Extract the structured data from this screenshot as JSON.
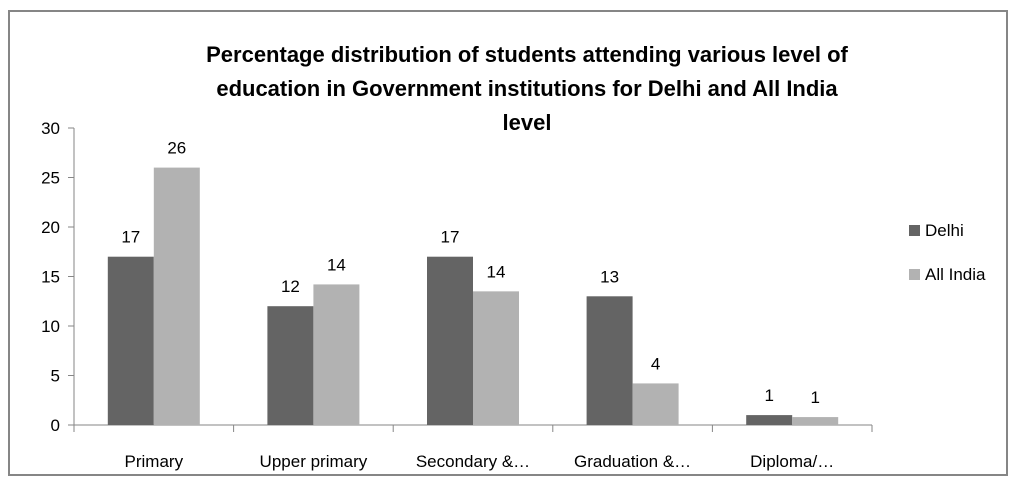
{
  "chart_data": {
    "type": "bar",
    "title_lines": [
      "Percentage distribution of students attending various level of",
      "education in Government institutions for Delhi and All India",
      "level"
    ],
    "categories": [
      "Primary",
      "Upper primary",
      "Secondary &…",
      "Graduation &…",
      "Diploma/…"
    ],
    "series": [
      {
        "name": "Delhi",
        "color": "#646464",
        "values": [
          17,
          12,
          17,
          13,
          1
        ],
        "labels": [
          "17",
          "12",
          "17",
          "13",
          "1"
        ]
      },
      {
        "name": "All India",
        "color": "#b2b2b2",
        "values": [
          26,
          14.2,
          13.5,
          4.2,
          0.8
        ],
        "labels": [
          "26",
          "14",
          "14",
          "4",
          "1"
        ]
      }
    ],
    "yticks": [
      "0",
      "5",
      "10",
      "15",
      "20",
      "25",
      "30"
    ],
    "ylim": [
      0,
      30
    ],
    "grid": false,
    "legend_position": "right"
  }
}
